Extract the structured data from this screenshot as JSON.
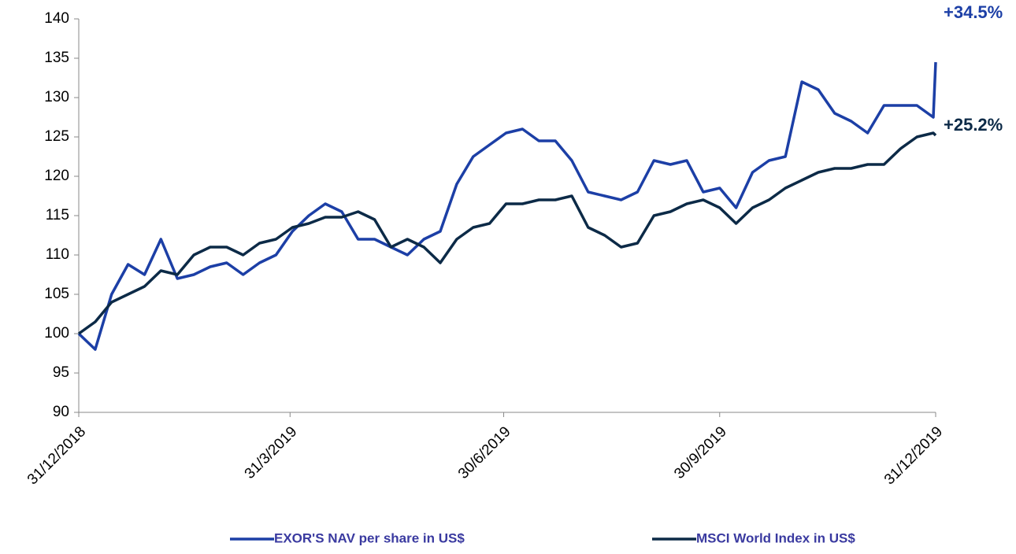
{
  "chart_data": {
    "type": "line",
    "x": [
      "31/12/2018",
      "7/1/2019",
      "14/1/2019",
      "21/1/2019",
      "28/1/2019",
      "4/2/2019",
      "11/2/2019",
      "18/2/2019",
      "25/2/2019",
      "4/3/2019",
      "11/3/2019",
      "18/3/2019",
      "25/3/2019",
      "1/4/2019",
      "8/4/2019",
      "15/4/2019",
      "22/4/2019",
      "29/4/2019",
      "6/5/2019",
      "13/5/2019",
      "20/5/2019",
      "27/5/2019",
      "3/6/2019",
      "10/6/2019",
      "17/6/2019",
      "24/6/2019",
      "1/7/2019",
      "8/7/2019",
      "15/7/2019",
      "22/7/2019",
      "29/7/2019",
      "5/8/2019",
      "12/8/2019",
      "19/8/2019",
      "26/8/2019",
      "2/9/2019",
      "9/9/2019",
      "16/9/2019",
      "23/9/2019",
      "30/9/2019",
      "7/10/2019",
      "14/10/2019",
      "21/10/2019",
      "28/10/2019",
      "4/11/2019",
      "11/11/2019",
      "18/11/2019",
      "25/11/2019",
      "2/12/2019",
      "9/12/2019",
      "16/12/2019",
      "23/12/2019",
      "30/12/2019",
      "31/12/2019"
    ],
    "series": [
      {
        "name": "EXOR'S NAV per share in US$",
        "color": "#1c3fa6",
        "end_label": "+34.5%",
        "values": [
          100,
          98,
          105,
          108.8,
          107.5,
          112,
          107,
          107.5,
          108.5,
          109,
          107.5,
          109,
          110,
          113,
          115,
          116.5,
          115.5,
          112,
          112,
          111,
          110,
          112,
          113,
          119,
          122.5,
          124,
          125.5,
          126,
          124.5,
          124.5,
          122,
          118,
          117.5,
          117,
          118,
          122,
          121.5,
          122,
          118,
          118.5,
          116,
          120.5,
          122,
          122.5,
          132,
          131,
          128,
          127,
          125.5,
          129,
          129,
          129,
          127.5,
          134.5
        ]
      },
      {
        "name": "MSCI World Index in US$",
        "color": "#0c2a47",
        "end_label": "+25.2%",
        "values": [
          100,
          101.5,
          104,
          105,
          106,
          108,
          107.5,
          110,
          111,
          111,
          110,
          111.5,
          112,
          113.5,
          114,
          114.8,
          114.8,
          115.5,
          114.5,
          111,
          112,
          111,
          109,
          112,
          113.5,
          114,
          116.5,
          116.5,
          117,
          117,
          117.5,
          113.5,
          112.5,
          111,
          111.5,
          115,
          115.5,
          116.5,
          117,
          116,
          114,
          116,
          117,
          118.5,
          119.5,
          120.5,
          121,
          121,
          121.5,
          121.5,
          123.5,
          125,
          125.5,
          125.2
        ]
      }
    ],
    "xlim": [
      "31/12/2018",
      "31/12/2019"
    ],
    "xticks": [
      "31/12/2018",
      "31/3/2019",
      "30/6/2019",
      "30/9/2019",
      "31/12/2019"
    ],
    "ylim": [
      90,
      140
    ],
    "yticks": [
      90,
      95,
      100,
      105,
      110,
      115,
      120,
      125,
      130,
      135,
      140
    ]
  }
}
